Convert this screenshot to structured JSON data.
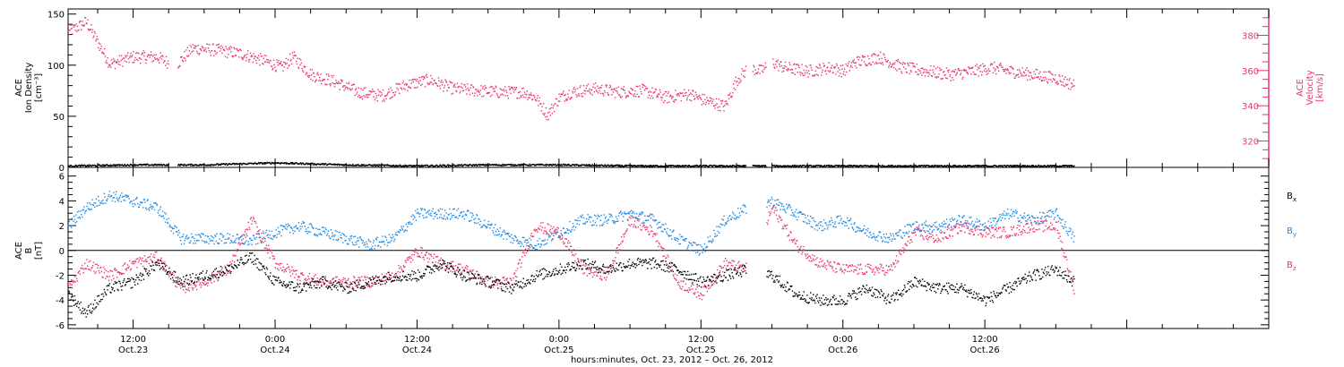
{
  "chart_data": [
    {
      "panel": "top",
      "type": "scatter",
      "ylabel_left": [
        "ACE",
        "Ion Density",
        "[cm⁻³]"
      ],
      "ylabel_right": [
        "ACE",
        "Velocity",
        "[km/s]"
      ],
      "ylim_left": [
        0,
        155
      ],
      "yticks_left": [
        0,
        50,
        100,
        150
      ],
      "ylim_right": [
        305,
        395
      ],
      "yticks_right": [
        320,
        340,
        360,
        380
      ],
      "right_axis_color": "#e8356a",
      "series": [
        {
          "name": "",
          "axis": "right",
          "color": "#e8356a",
          "note": "approximate solar wind velocity trend (hours since 2012-10-23 00:00)",
          "x": [
            6.5,
            8,
            9.5,
            10,
            12,
            14,
            15.5,
            17,
            19,
            21,
            23,
            24.5,
            25.5,
            27,
            29,
            31,
            33,
            35,
            37,
            39,
            41,
            43,
            45,
            46,
            47,
            48,
            49,
            51,
            53,
            55,
            57,
            59,
            60,
            61,
            62,
            63,
            64,
            65,
            66,
            67,
            69,
            71,
            72,
            73,
            75,
            77,
            79,
            81,
            83,
            84.5,
            86,
            88,
            90,
            91.5
          ],
          "values": [
            382,
            388,
            370,
            364,
            368,
            368,
            363,
            373,
            372,
            370,
            366,
            362,
            368,
            358,
            354,
            348,
            346,
            352,
            355,
            350,
            349,
            348,
            348,
            345,
            335,
            345,
            348,
            350,
            348,
            349,
            345,
            347,
            344,
            342,
            340,
            355,
            362,
            360,
            365,
            362,
            360,
            362,
            360,
            365,
            368,
            362,
            360,
            358,
            360,
            362,
            360,
            358,
            356,
            352
          ]
        },
        {
          "name": "",
          "axis": "left",
          "color": "#000000",
          "note": "ion density near zero",
          "x": [
            6.5,
            12,
            18,
            24,
            30,
            36,
            42,
            48,
            54,
            60,
            66,
            72,
            78,
            84,
            91.5
          ],
          "values": [
            2,
            3,
            3,
            5,
            3,
            2,
            3,
            3,
            2,
            2,
            2,
            2,
            2,
            2,
            2
          ]
        }
      ],
      "data_gaps_hours": [
        [
          15,
          15.7
        ],
        [
          63.8,
          64.3
        ],
        [
          65.5,
          66
        ]
      ]
    },
    {
      "panel": "bottom",
      "type": "scatter",
      "ylabel_left": [
        "ACE",
        "B",
        "[nT]"
      ],
      "ylim": [
        -6.3,
        6.7
      ],
      "yticks": [
        -6,
        -4,
        -2,
        0,
        2,
        4,
        6
      ],
      "zero_line": true,
      "legend_position": "right",
      "series": [
        {
          "name": "B",
          "subscript": "x",
          "color": "#000000",
          "x": [
            6.5,
            8,
            10,
            12,
            14,
            16,
            18,
            20,
            22,
            24,
            26,
            28,
            30,
            32,
            34,
            36,
            38,
            40,
            42,
            44,
            46,
            48,
            50,
            52,
            54,
            56,
            58,
            60,
            62,
            64,
            66,
            68,
            70,
            72,
            74,
            76,
            78,
            80,
            82,
            84,
            86,
            88,
            90,
            91.5
          ],
          "values": [
            -3.5,
            -5,
            -3,
            -2.5,
            -1,
            -2.5,
            -2,
            -1.5,
            -0.5,
            -2.5,
            -3,
            -2.5,
            -3,
            -2.5,
            -2,
            -2,
            -1,
            -2,
            -2.5,
            -3,
            -2,
            -1.5,
            -1,
            -1.5,
            -1,
            -1,
            -1.5,
            -2.5,
            -2,
            -1.5,
            -2,
            -3.5,
            -4,
            -4,
            -3,
            -4,
            -2.5,
            -3,
            -3,
            -4,
            -3,
            -2,
            -1.5,
            -2.5
          ]
        },
        {
          "name": "B",
          "subscript": "y",
          "color": "#1e88e5",
          "x": [
            6.5,
            8,
            10,
            12,
            14,
            16,
            18,
            20,
            22,
            24,
            26,
            28,
            30,
            32,
            34,
            36,
            38,
            40,
            42,
            44,
            46,
            48,
            50,
            52,
            54,
            56,
            58,
            60,
            62,
            64,
            66,
            68,
            70,
            72,
            74,
            76,
            78,
            80,
            82,
            84,
            86,
            88,
            90,
            91.5
          ],
          "values": [
            2,
            3.5,
            4.5,
            4,
            3.5,
            1,
            1,
            1,
            0.8,
            1.5,
            2,
            1.5,
            1,
            0.5,
            1,
            3,
            3,
            3,
            2,
            1,
            0.5,
            1.5,
            2.5,
            2.5,
            3,
            2.5,
            1,
            0,
            2.5,
            3.5,
            4,
            3,
            2,
            2.5,
            1.5,
            1,
            2,
            2,
            2.5,
            2,
            3,
            2.5,
            3,
            1
          ]
        },
        {
          "name": "B",
          "subscript": "z",
          "color": "#e8356a",
          "x": [
            6.5,
            8,
            10,
            12,
            14,
            16,
            18,
            20,
            22,
            24,
            26,
            28,
            30,
            32,
            34,
            36,
            38,
            40,
            42,
            44,
            46,
            48,
            50,
            52,
            54,
            56,
            58,
            60,
            62,
            64,
            66,
            68,
            70,
            72,
            74,
            76,
            78,
            80,
            82,
            84,
            86,
            88,
            90,
            91.5
          ],
          "values": [
            -3,
            -1,
            -2,
            -1,
            -0.5,
            -3,
            -2.5,
            -1.5,
            2.5,
            -1,
            -2,
            -2.5,
            -2.5,
            -2.5,
            -2,
            0,
            -1,
            -1.5,
            -2.5,
            -2.5,
            2,
            1.5,
            -1.5,
            -2,
            2.5,
            1.5,
            -2.5,
            -3.5,
            -1,
            -1.5,
            3.5,
            0.5,
            -1,
            -1.5,
            -1.5,
            -1.5,
            1.5,
            1,
            2,
            1.5,
            1.5,
            2,
            2,
            -3
          ]
        }
      ],
      "data_gaps_hours": [
        [
          63.8,
          65.5
        ]
      ]
    }
  ],
  "x_axis": {
    "range_hours": [
      6.5,
      108
    ],
    "ticks": [
      {
        "hour": 12,
        "time": "12:00",
        "day": "Oct.23"
      },
      {
        "hour": 24,
        "time": "0:00",
        "day": "Oct.24"
      },
      {
        "hour": 36,
        "time": "12:00",
        "day": "Oct.24"
      },
      {
        "hour": 48,
        "time": "0:00",
        "day": "Oct.25"
      },
      {
        "hour": 60,
        "time": "12:00",
        "day": "Oct.25"
      },
      {
        "hour": 72,
        "time": "0:00",
        "day": "Oct.26"
      },
      {
        "hour": 84,
        "time": "12:00",
        "day": "Oct.26"
      }
    ],
    "minor_step_hours": 3,
    "title": "hours:minutes, Oct. 23, 2012 – Oct. 26, 2012"
  }
}
